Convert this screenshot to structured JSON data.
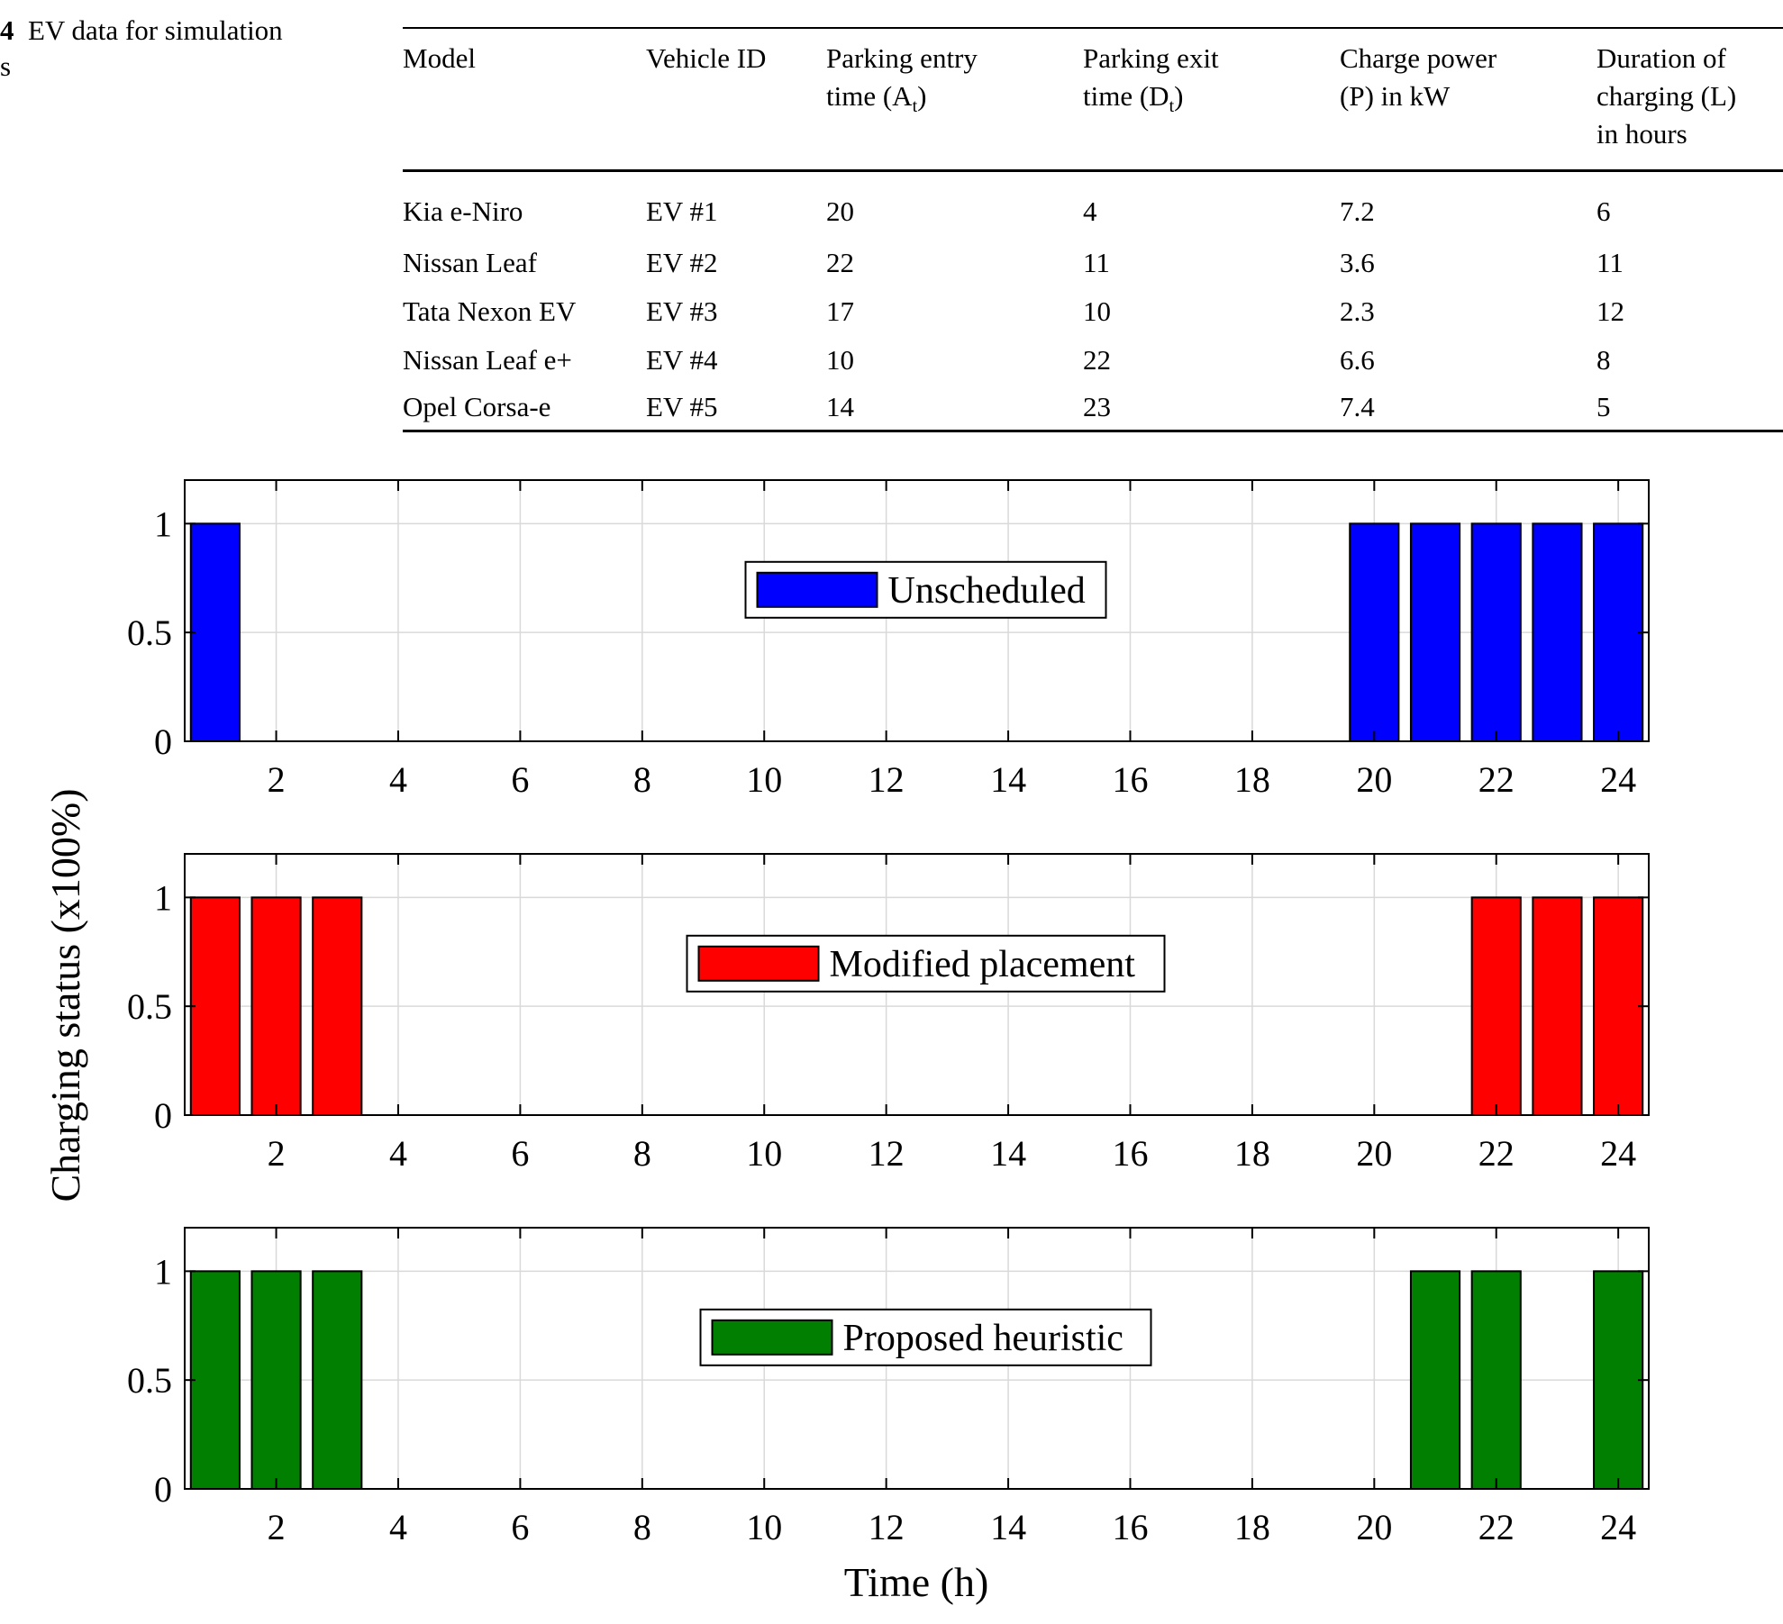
{
  "caption": {
    "label": "4",
    "text": "EV data for simulation",
    "line2": "s"
  },
  "table": {
    "headers": [
      {
        "lines": [
          "Model"
        ]
      },
      {
        "lines": [
          "Vehicle ID"
        ]
      },
      {
        "lines": [
          "Parking entry",
          "time (A",
          "t",
          ")"
        ]
      },
      {
        "lines": [
          "Parking exit",
          "time (D",
          "t",
          ")"
        ]
      },
      {
        "lines": [
          "Charge power",
          "(P) in kW"
        ]
      },
      {
        "lines": [
          "Duration of",
          "charging (L)",
          "in hours"
        ]
      }
    ],
    "rows": [
      [
        "Kia e-Niro",
        "EV #1",
        "20",
        "4",
        "7.2",
        "6"
      ],
      [
        "Nissan Leaf",
        "EV #2",
        "22",
        "11",
        "3.6",
        "11"
      ],
      [
        "Tata Nexon EV",
        "EV #3",
        "17",
        "10",
        "2.3",
        "12"
      ],
      [
        "Nissan Leaf e+",
        "EV #4",
        "10",
        "22",
        "6.6",
        "8"
      ],
      [
        "Opel Corsa-e",
        "EV #5",
        "14",
        "23",
        "7.4",
        "5"
      ]
    ]
  },
  "chart_data": {
    "type": "bar",
    "ylabel": "Charging status (x100%)",
    "xlabel": "Time (h)",
    "x": [
      1,
      2,
      3,
      4,
      5,
      6,
      7,
      8,
      9,
      10,
      11,
      12,
      13,
      14,
      15,
      16,
      17,
      18,
      19,
      20,
      21,
      22,
      23,
      24
    ],
    "xticks": [
      2,
      4,
      6,
      8,
      10,
      12,
      14,
      16,
      18,
      20,
      22,
      24
    ],
    "yticks": [
      "0",
      "0.5",
      "1"
    ],
    "ylim": [
      0,
      1.2
    ],
    "xlim": [
      0.5,
      24.5
    ],
    "grid": true,
    "legend_placement": "center",
    "series": [
      {
        "name": "Unscheduled",
        "color": "#0000ff",
        "values": [
          1,
          0,
          0,
          0,
          0,
          0,
          0,
          0,
          0,
          0,
          0,
          0,
          0,
          0,
          0,
          0,
          0,
          0,
          0,
          1,
          1,
          1,
          1,
          1
        ]
      },
      {
        "name": "Modified placement",
        "color": "#ff0000",
        "values": [
          1,
          1,
          1,
          0,
          0,
          0,
          0,
          0,
          0,
          0,
          0,
          0,
          0,
          0,
          0,
          0,
          0,
          0,
          0,
          0,
          0,
          1,
          1,
          1
        ]
      },
      {
        "name": "Proposed heuristic",
        "color": "#007f00",
        "values": [
          1,
          1,
          1,
          0,
          0,
          0,
          0,
          0,
          0,
          0,
          0,
          0,
          0,
          0,
          0,
          0,
          0,
          0,
          0,
          0,
          1,
          1,
          0,
          1
        ]
      }
    ]
  }
}
